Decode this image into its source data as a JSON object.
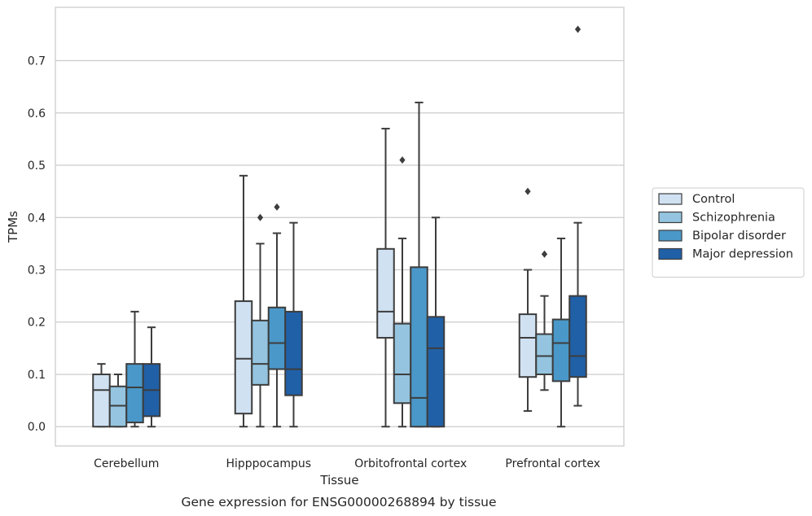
{
  "caption": "Gene expression for ENSG00000268894 by tissue",
  "chart_data": {
    "type": "box",
    "xlabel": "Tissue",
    "ylabel": "TPMs",
    "ylim": [
      -0.037,
      0.802
    ],
    "yticks": [
      "0.0",
      "0.1",
      "0.2",
      "0.3",
      "0.4",
      "0.5",
      "0.6",
      "0.7"
    ],
    "grid": "horizontal",
    "legend_position": "right",
    "categories": [
      "Cerebellum",
      "Hipppocampus",
      "Orbitofrontal cortex",
      "Prefrontal cortex"
    ],
    "series": [
      {
        "name": "Control",
        "color": "#d0e1f2",
        "boxes": [
          {
            "whisker_low": 0.0,
            "q1": 0.0,
            "median": 0.07,
            "q3": 0.1,
            "whisker_high": 0.12,
            "outliers": []
          },
          {
            "whisker_low": 0.0,
            "q1": 0.025,
            "median": 0.13,
            "q3": 0.24,
            "whisker_high": 0.48,
            "outliers": []
          },
          {
            "whisker_low": 0.0,
            "q1": 0.17,
            "median": 0.22,
            "q3": 0.34,
            "whisker_high": 0.57,
            "outliers": []
          },
          {
            "whisker_low": 0.03,
            "q1": 0.095,
            "median": 0.17,
            "q3": 0.215,
            "whisker_high": 0.3,
            "outliers": [
              0.45
            ]
          }
        ]
      },
      {
        "name": "Schizophrenia",
        "color": "#94c4df",
        "boxes": [
          {
            "whisker_low": 0.0,
            "q1": 0.0,
            "median": 0.04,
            "q3": 0.077,
            "whisker_high": 0.1,
            "outliers": []
          },
          {
            "whisker_low": 0.0,
            "q1": 0.08,
            "median": 0.12,
            "q3": 0.203,
            "whisker_high": 0.35,
            "outliers": [
              0.4
            ]
          },
          {
            "whisker_low": 0.0,
            "q1": 0.045,
            "median": 0.1,
            "q3": 0.197,
            "whisker_high": 0.36,
            "outliers": [
              0.51
            ]
          },
          {
            "whisker_low": 0.07,
            "q1": 0.1,
            "median": 0.135,
            "q3": 0.177,
            "whisker_high": 0.25,
            "outliers": [
              0.33
            ]
          }
        ]
      },
      {
        "name": "Bipolar disorder",
        "color": "#4a98c9",
        "boxes": [
          {
            "whisker_low": 0.0,
            "q1": 0.008,
            "median": 0.075,
            "q3": 0.12,
            "whisker_high": 0.22,
            "outliers": []
          },
          {
            "whisker_low": 0.0,
            "q1": 0.11,
            "median": 0.16,
            "q3": 0.228,
            "whisker_high": 0.37,
            "outliers": [
              0.42
            ]
          },
          {
            "whisker_low": 0.0,
            "q1": 0.0,
            "median": 0.055,
            "q3": 0.305,
            "whisker_high": 0.62,
            "outliers": []
          },
          {
            "whisker_low": 0.0,
            "q1": 0.087,
            "median": 0.16,
            "q3": 0.205,
            "whisker_high": 0.36,
            "outliers": []
          }
        ]
      },
      {
        "name": "Major depression",
        "color": "#2060a7",
        "boxes": [
          {
            "whisker_low": 0.0,
            "q1": 0.02,
            "median": 0.07,
            "q3": 0.12,
            "whisker_high": 0.19,
            "outliers": []
          },
          {
            "whisker_low": 0.0,
            "q1": 0.06,
            "median": 0.11,
            "q3": 0.22,
            "whisker_high": 0.39,
            "outliers": []
          },
          {
            "whisker_low": 0.0,
            "q1": 0.0,
            "median": 0.15,
            "q3": 0.21,
            "whisker_high": 0.4,
            "outliers": []
          },
          {
            "whisker_low": 0.04,
            "q1": 0.095,
            "median": 0.135,
            "q3": 0.25,
            "whisker_high": 0.39,
            "outliers": [
              0.76
            ]
          }
        ]
      }
    ]
  }
}
